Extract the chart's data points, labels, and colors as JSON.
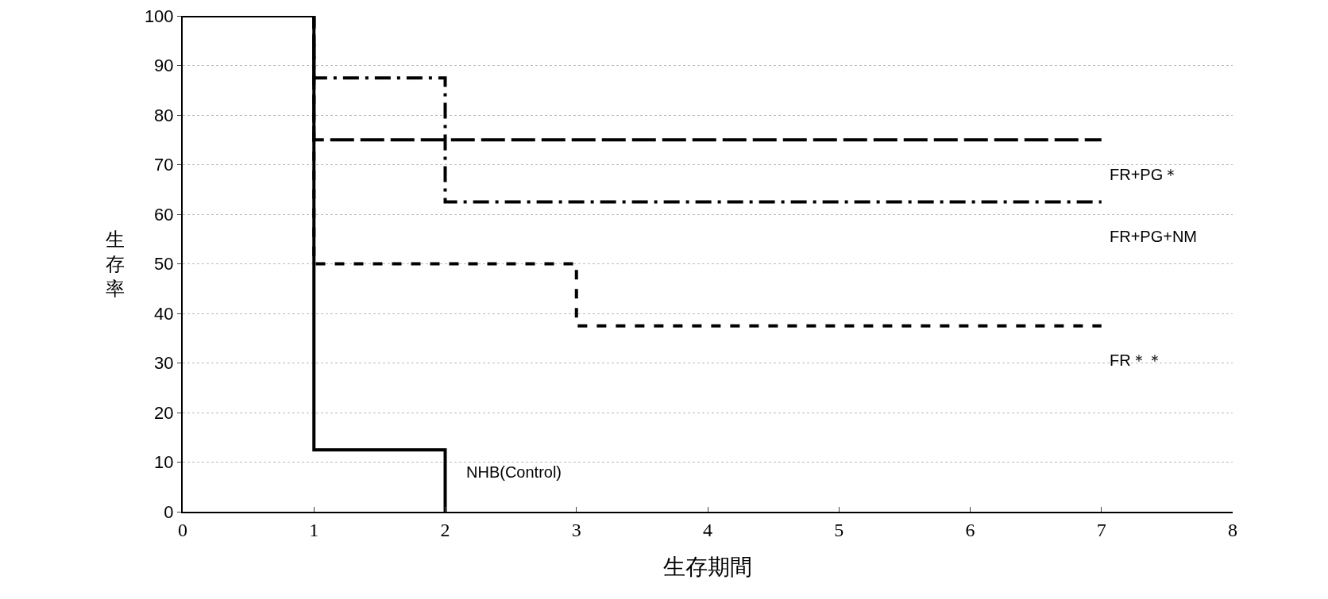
{
  "chart_data": {
    "type": "step",
    "xlabel": "生存期間",
    "ylabel": "生存率",
    "xlim": [
      0,
      8
    ],
    "xticks": [
      0,
      1,
      2,
      3,
      4,
      5,
      6,
      7,
      8
    ],
    "ylim": [
      0,
      100
    ],
    "yticks": [
      0,
      10,
      20,
      30,
      40,
      50,
      60,
      70,
      80,
      90,
      100
    ],
    "grid": "y",
    "legend": false,
    "marker": "none",
    "series": [
      {
        "name": "NHB(Control)",
        "color": "#000000",
        "line_style": "solid",
        "x": [
          0,
          1,
          2
        ],
        "values": [
          100,
          12.5,
          0
        ]
      },
      {
        "name": "FR+PG＊",
        "color": "#000000",
        "line_style": "dashed",
        "x": [
          0,
          1,
          7
        ],
        "values": [
          100,
          75,
          75
        ]
      },
      {
        "name": "FR+PG+NM",
        "color": "#000000",
        "line_style": "dashdot",
        "x": [
          0,
          1,
          2,
          7
        ],
        "values": [
          100,
          87.5,
          62.5,
          62.5
        ]
      },
      {
        "name": "FR＊＊",
        "color": "#000000",
        "line_style": "dotted",
        "x": [
          0,
          1,
          3,
          7
        ],
        "values": [
          100,
          50,
          37.5,
          37.5
        ]
      }
    ]
  }
}
